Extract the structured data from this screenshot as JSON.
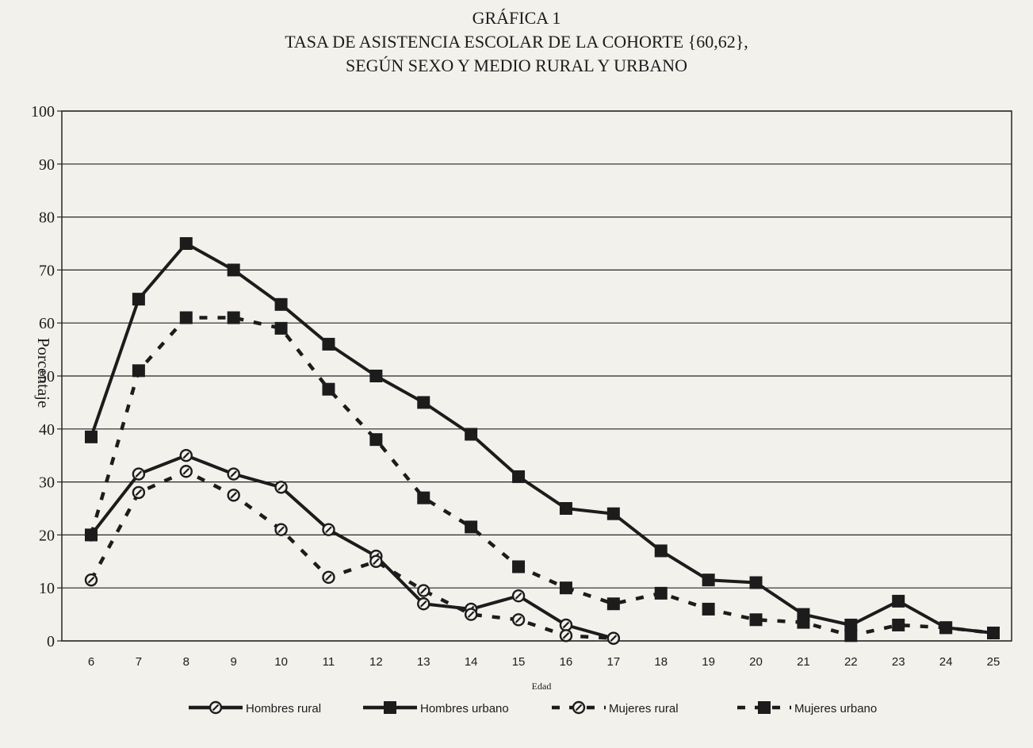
{
  "chart_data": {
    "type": "line",
    "title_lines": [
      "GRÁFICA 1",
      "TASA DE ASISTENCIA ESCOLAR DE LA COHORTE {60,62},",
      "SEGÚN SEXO Y MEDIO RURAL Y URBANO"
    ],
    "xlabel": "Edad",
    "ylabel": "Porcentaje",
    "ylim": [
      0,
      100
    ],
    "yticks": [
      0,
      10,
      20,
      30,
      40,
      50,
      60,
      70,
      80,
      90,
      100
    ],
    "x": [
      6,
      7,
      8,
      9,
      10,
      11,
      12,
      13,
      14,
      15,
      16,
      17,
      18,
      19,
      20,
      21,
      22,
      23,
      24,
      25
    ],
    "grid": "horizontal",
    "legend_position": "bottom",
    "series": [
      {
        "name": "Hombres rural",
        "style": "solid",
        "marker": "circle",
        "values": [
          20,
          31.5,
          35,
          31.5,
          29,
          21,
          16,
          7,
          6,
          8.5,
          3,
          0.5,
          null,
          null,
          null,
          null,
          null,
          null,
          null,
          null
        ]
      },
      {
        "name": "Hombres urbano",
        "style": "solid",
        "marker": "square",
        "values": [
          38.5,
          64.5,
          75,
          70,
          63.5,
          56,
          50,
          45,
          39,
          31,
          25,
          24,
          17,
          11.5,
          11,
          5,
          3,
          7.5,
          2.5,
          1.5
        ]
      },
      {
        "name": "Mujeres rural",
        "style": "dashed",
        "marker": "circle",
        "values": [
          11.5,
          28,
          32,
          27.5,
          21,
          12,
          15,
          9.5,
          5,
          4,
          1,
          0.5,
          null,
          null,
          null,
          null,
          null,
          null,
          null,
          null
        ]
      },
      {
        "name": "Mujeres urbano",
        "style": "dashed",
        "marker": "square",
        "values": [
          20,
          51,
          61,
          61,
          59,
          47.5,
          38,
          27,
          21.5,
          14,
          10,
          7,
          9,
          6,
          4,
          3.5,
          1,
          3,
          2.5,
          1.5
        ]
      }
    ],
    "colors": {
      "line": "#1c1c1c",
      "grid": "#262626",
      "background": "#f3f1ec"
    }
  }
}
